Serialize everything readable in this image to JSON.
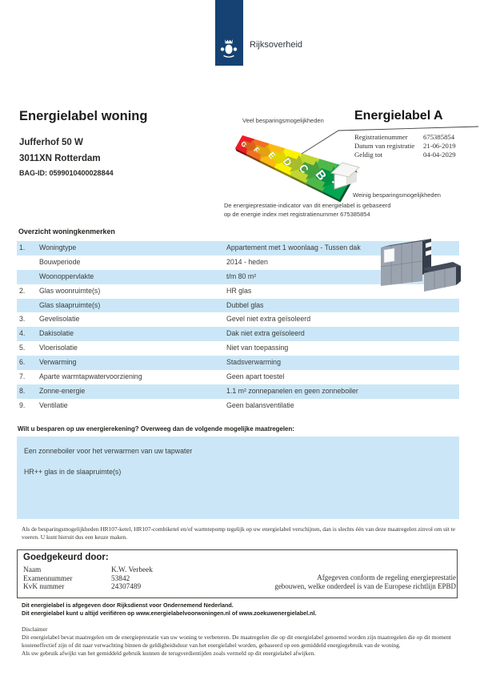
{
  "header": {
    "logo_text": "Rijksoverheid"
  },
  "title_block": {
    "title": "Energielabel woning",
    "address_line1": "Jufferhof 50 W",
    "address_line2": "3011XN Rotterdam",
    "bag_id": "BAG-ID: 0599010400028844"
  },
  "label_panel": {
    "more_savings": "Veel besparingsmogelijkheden",
    "less_savings": "Weinig besparingsmogelijkheden",
    "label_title": "Energielabel A",
    "current_rating": "A",
    "fields": [
      {
        "label": "Registratienummer",
        "value": "675385854"
      },
      {
        "label": "Datum van registratie",
        "value": "21-06-2019"
      },
      {
        "label": "Geldig tot",
        "value": "04-04-2029"
      }
    ],
    "caption_line1": "De energieprestatie-indicator van dit energielabel is gebaseerd",
    "caption_line2": "op de energie index met registratienummer 675385854"
  },
  "energy_scale": {
    "bands": [
      {
        "letter": "G",
        "color": "#ed1c24"
      },
      {
        "letter": "F",
        "color": "#f37021"
      },
      {
        "letter": "E",
        "color": "#fdb913"
      },
      {
        "letter": "D",
        "color": "#fff200"
      },
      {
        "letter": "C",
        "color": "#bfd730"
      },
      {
        "letter": "B",
        "color": "#50b848"
      },
      {
        "letter": "A",
        "color": "#00a651"
      }
    ]
  },
  "characteristics": {
    "heading": "Overzicht woningkenmerken",
    "rows": [
      {
        "num": "1.",
        "label": "Woningtype",
        "value": "Appartement met 1 woonlaag - Tussen dak",
        "shaded": true
      },
      {
        "num": "",
        "label": "Bouwperiode",
        "value": "2014 - heden",
        "shaded": false
      },
      {
        "num": "",
        "label": "Woonoppervlakte",
        "value": "t/m 80 m²",
        "shaded": true
      },
      {
        "num": "2.",
        "label": "Glas woonruimte(s)",
        "value": "HR glas",
        "shaded": false
      },
      {
        "num": "",
        "label": "Glas slaapruimte(s)",
        "value": "Dubbel glas",
        "shaded": true
      },
      {
        "num": "3.",
        "label": "Gevelisolatie",
        "value": "Gevel niet extra geïsoleerd",
        "shaded": false
      },
      {
        "num": "4.",
        "label": "Dakisolatie",
        "value": "Dak niet extra geïsoleerd",
        "shaded": true
      },
      {
        "num": "5.",
        "label": "Vloerisolatie",
        "value": "Niet van toepassing",
        "shaded": false
      },
      {
        "num": "6.",
        "label": "Verwarming",
        "value": "Stadsverwarming",
        "shaded": true
      },
      {
        "num": "7.",
        "label": "Aparte warmtapwatervoorziening",
        "value": "Geen apart toestel",
        "shaded": false
      },
      {
        "num": "8.",
        "label": "Zonne-energie",
        "value": "1.1 m² zonnepanelen en geen zonneboiler",
        "shaded": true
      },
      {
        "num": "9.",
        "label": "Ventilatie",
        "value": "Geen balansventilatie",
        "shaded": false
      }
    ]
  },
  "measures": {
    "heading": "Wilt u besparen op uw energierekening? Overweeg dan de volgende mogelijke maatregelen:",
    "items": [
      "Een zonneboiler voor het verwarmen van uw tapwater",
      "HR++ glas in de slaapruimte(s)"
    ],
    "note_line1": "Als de besparingsmogelijkheden HR107-ketel, HR107-combiketel en/of warmtepomp tegelijk op uw energielabel verschijnen, dan is slechts één van deze maatregelen zinvol om uit te",
    "note_line2": "voeren. U kunt hieruit dus een keuze maken."
  },
  "approval": {
    "heading": "Goedgekeurd door:",
    "fields": [
      {
        "label": "Naam",
        "value": "K.W.  Verbeek"
      },
      {
        "label": "Examennummer",
        "value": "53842"
      },
      {
        "label": "KvK nummer",
        "value": "24307489"
      }
    ],
    "conform_line1": "Afgegeven conform de regeling energieprestatie",
    "conform_line2": "gebouwen, welke onderdeel is van de Europese richtlijn EPBD"
  },
  "footer": {
    "bold_line1": "Dit energielabel is afgegeven door Rijksdienst voor Ondernemend Nederland.",
    "bold_line2": "Dit energielabel kunt u altijd verifiëren op www.energielabelvoorwoningen.nl of www.zoekuwenergielabel.nl.",
    "disclaimer_title": "Disclaimer",
    "disclaimer_line1": "Dit energielabel bevat maatregelen om de energieprestatie van uw woning te verbeteren. De maatregelen die op dit energielabel genoemd worden zijn maatregelen die op dit moment",
    "disclaimer_line2": "kosteneffectief zijn of dit naar verwachting binnen de geldigheidsduur van het energielabel worden, gebaseerd op een gemiddeld energiegebruik van de woning.",
    "disclaimer_line3": "Als uw gebruik afwijkt van het gemiddeld gebruik kunnen de terugverdientijden zoals vermeld op dit energielabel afwijken."
  }
}
